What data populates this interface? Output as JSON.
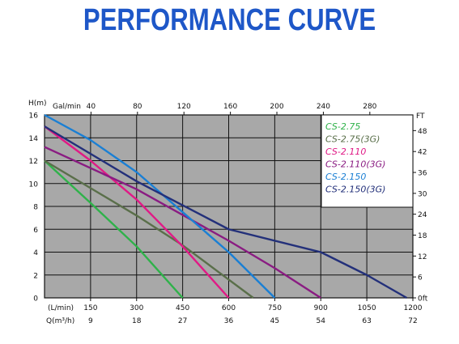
{
  "title": "PERFORMANCE CURVE",
  "chart_data": {
    "type": "line",
    "title": "PERFORMANCE CURVE",
    "grid": true,
    "legend_position": "top-right",
    "axes": {
      "left": {
        "label": "H(m)",
        "range": [
          0,
          16
        ],
        "ticks": [
          "0",
          "2",
          "4",
          "6",
          "8",
          "10",
          "12",
          "14",
          "16"
        ]
      },
      "right": {
        "label": "FT",
        "range": [
          0,
          52.5
        ],
        "ticks": [
          {
            "text": "0ft",
            "m": 0
          },
          {
            "text": "6",
            "m": 1.83
          },
          {
            "text": "12",
            "m": 3.66
          },
          {
            "text": "18",
            "m": 5.49
          },
          {
            "text": "24",
            "m": 7.32
          },
          {
            "text": "30",
            "m": 9.14
          },
          {
            "text": "36",
            "m": 10.97
          },
          {
            "text": "42",
            "m": 12.8
          },
          {
            "text": "48",
            "m": 14.63
          }
        ]
      },
      "top": {
        "label": "Gal/min",
        "ticks": [
          {
            "text": "40",
            "lmin": 151.4
          },
          {
            "text": "80",
            "lmin": 302.8
          },
          {
            "text": "120",
            "lmin": 454.2
          },
          {
            "text": "160",
            "lmin": 605.6
          },
          {
            "text": "200",
            "lmin": 757
          },
          {
            "text": "240",
            "lmin": 908.4
          },
          {
            "text": "280",
            "lmin": 1059.8
          }
        ]
      },
      "bottom1": {
        "label": "(L/min)",
        "range": [
          0,
          1200
        ],
        "ticks": [
          "0",
          "150",
          "300",
          "450",
          "600",
          "750",
          "900",
          "1050",
          "1200"
        ]
      },
      "bottom2": {
        "label": "Q(m³/h)",
        "range": [
          0,
          72
        ],
        "ticks": [
          "0",
          "9",
          "18",
          "27",
          "36",
          "45",
          "54",
          "63",
          "72"
        ]
      }
    },
    "series": [
      {
        "name": "CS-2.75",
        "color": "#2fb24a",
        "x": [
          0,
          150,
          300,
          450
        ],
        "y": [
          12,
          8.3,
          4.5,
          0
        ]
      },
      {
        "name": "CS-2.75(3G)",
        "color": "#5a6f4a",
        "x": [
          0,
          300,
          450,
          550,
          680
        ],
        "y": [
          12,
          7.2,
          4.6,
          2.6,
          0
        ]
      },
      {
        "name": "CS-2.110",
        "color": "#e01a86",
        "x": [
          0,
          150,
          300,
          450,
          600
        ],
        "y": [
          15,
          12,
          8.6,
          4.5,
          0
        ]
      },
      {
        "name": "CS-2.110(3G)",
        "color": "#8a1c82",
        "x": [
          0,
          300,
          600,
          750,
          900
        ],
        "y": [
          13.2,
          9.5,
          5.0,
          2.6,
          0
        ]
      },
      {
        "name": "CS-2.150",
        "color": "#1a7fd4",
        "x": [
          0,
          150,
          300,
          450,
          600,
          750
        ],
        "y": [
          16,
          13.8,
          11,
          7.5,
          4,
          0
        ]
      },
      {
        "name": "CS-2.150(3G)",
        "color": "#23307a",
        "x": [
          0,
          300,
          600,
          900,
          1050,
          1180
        ],
        "y": [
          15,
          10.2,
          6.0,
          4.0,
          2.0,
          0
        ]
      }
    ]
  }
}
